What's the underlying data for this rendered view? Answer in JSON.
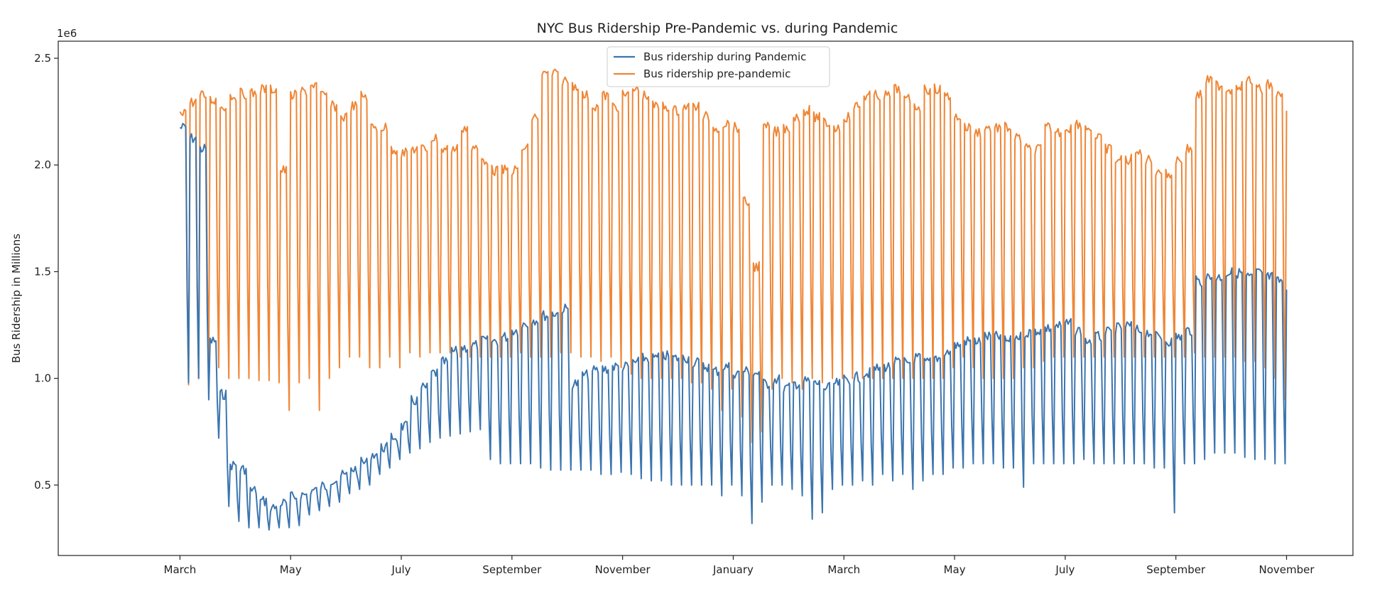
{
  "chart_data": {
    "type": "line",
    "title": "NYC Bus Ridership Pre-Pandemic vs. during Pandemic",
    "xlabel": "",
    "ylabel": "Bus Ridership in Millions",
    "y_offset_label": "1e6",
    "ylim": [
      0.17,
      2.58
    ],
    "yticks": [
      0.5,
      1.0,
      1.5,
      2.0,
      2.5
    ],
    "ytick_labels": [
      "0.5",
      "1.0",
      "1.5",
      "2.0",
      "2.5"
    ],
    "xlim": [
      -2.2,
      21.2
    ],
    "xticks": [
      {
        "x": 0,
        "label": "March"
      },
      {
        "x": 2,
        "label": "May"
      },
      {
        "x": 4,
        "label": "July"
      },
      {
        "x": 6,
        "label": "September"
      },
      {
        "x": 8,
        "label": "November"
      },
      {
        "x": 10,
        "label": "January"
      },
      {
        "x": 12,
        "label": "March"
      },
      {
        "x": 14,
        "label": "May"
      },
      {
        "x": 16,
        "label": "July"
      },
      {
        "x": 18,
        "label": "September"
      },
      {
        "x": 20,
        "label": "November"
      }
    ],
    "legend": {
      "position": "top-center"
    },
    "grid": false,
    "series": [
      {
        "name": "Bus ridership during Pandemic",
        "color": "#3b75af",
        "weekly": [
          2.2,
          2.15,
          2.1,
          1.2,
          0.95,
          0.62,
          0.6,
          0.5,
          0.45,
          0.42,
          0.44,
          0.47,
          0.48,
          0.5,
          0.52,
          0.55,
          0.57,
          0.6,
          0.63,
          0.67,
          0.7,
          0.75,
          0.8,
          0.92,
          0.98,
          1.05,
          1.1,
          1.15,
          1.17,
          1.18,
          1.2,
          1.2,
          1.22,
          1.25,
          1.28,
          1.3,
          1.32,
          1.33,
          1.35,
          1.0,
          1.04,
          1.06,
          1.07,
          1.08,
          1.08,
          1.1,
          1.12,
          1.12,
          1.13,
          1.12,
          1.12,
          1.1,
          1.08,
          1.06,
          1.08,
          1.05,
          1.06,
          1.05,
          1.0,
          1.02,
          0.98,
          1.0,
          1.01,
          1.0,
          0.98,
          1.0,
          1.02,
          1.03,
          1.05,
          1.07,
          1.08,
          1.1,
          1.1,
          1.12,
          1.1,
          1.12,
          1.15,
          1.18,
          1.2,
          1.2,
          1.22,
          1.22,
          1.2,
          1.22,
          1.24,
          1.25,
          1.26,
          1.27,
          1.28,
          1.25,
          1.2,
          1.22,
          1.24,
          1.26,
          1.27,
          1.25,
          1.24,
          1.22,
          1.2,
          1.22,
          1.25,
          1.48,
          1.5,
          1.5,
          1.52,
          1.52,
          1.5,
          1.52,
          1.5,
          1.48,
          1.42
        ],
        "weekly_lows": [
          0.98,
          1.0,
          0.9,
          0.72,
          0.4,
          0.33,
          0.3,
          0.3,
          0.29,
          0.3,
          0.3,
          0.31,
          0.36,
          0.38,
          0.4,
          0.42,
          0.46,
          0.48,
          0.5,
          0.55,
          0.58,
          0.62,
          0.65,
          0.67,
          0.7,
          0.72,
          0.73,
          0.74,
          0.75,
          0.76,
          0.62,
          0.6,
          0.6,
          0.6,
          0.6,
          0.58,
          0.57,
          0.57,
          0.57,
          0.57,
          0.57,
          0.55,
          0.55,
          0.56,
          0.55,
          0.53,
          0.52,
          0.52,
          0.5,
          0.5,
          0.5,
          0.5,
          0.5,
          0.45,
          0.5,
          0.45,
          0.32,
          0.42,
          0.5,
          0.5,
          0.48,
          0.45,
          0.34,
          0.37,
          0.48,
          0.5,
          0.5,
          0.52,
          0.5,
          0.55,
          0.52,
          0.55,
          0.48,
          0.52,
          0.55,
          0.55,
          0.58,
          0.58,
          0.6,
          0.6,
          0.6,
          0.58,
          0.58,
          0.49,
          0.6,
          0.6,
          0.6,
          0.6,
          0.6,
          0.62,
          0.6,
          0.6,
          0.6,
          0.6,
          0.6,
          0.6,
          0.58,
          0.58,
          0.37,
          0.6,
          0.6,
          0.62,
          0.65,
          0.65,
          0.65,
          0.63,
          0.62,
          0.62,
          0.6,
          0.6,
          0.65
        ]
      },
      {
        "name": "Bus ridership pre-pandemic",
        "color": "#ef8636",
        "weekly": [
          2.28,
          2.32,
          2.35,
          2.33,
          2.3,
          2.35,
          2.36,
          2.36,
          2.38,
          2.38,
          2.0,
          2.35,
          2.37,
          2.4,
          2.35,
          2.3,
          2.25,
          2.3,
          2.35,
          2.2,
          2.2,
          2.1,
          2.08,
          2.1,
          2.1,
          2.15,
          2.1,
          2.1,
          2.2,
          2.1,
          2.05,
          2.0,
          2.0,
          2.0,
          2.1,
          2.25,
          2.45,
          2.45,
          2.42,
          2.4,
          2.35,
          2.3,
          2.35,
          2.3,
          2.35,
          2.38,
          2.35,
          2.3,
          2.3,
          2.28,
          2.3,
          2.3,
          2.25,
          2.2,
          2.22,
          2.2,
          1.85,
          1.55,
          2.2,
          2.18,
          2.2,
          2.25,
          2.28,
          2.25,
          2.22,
          2.2,
          2.25,
          2.3,
          2.35,
          2.35,
          2.35,
          2.38,
          2.33,
          2.3,
          2.38,
          2.38,
          2.35,
          2.25,
          2.2,
          2.18,
          2.2,
          2.2,
          2.2,
          2.15,
          2.1,
          2.1,
          2.2,
          2.18,
          2.2,
          2.22,
          2.2,
          2.15,
          2.1,
          2.05,
          2.05,
          2.08,
          2.05,
          2.0,
          1.98,
          2.05,
          2.1,
          2.35,
          2.42,
          2.4,
          2.38,
          2.4,
          2.42,
          2.38,
          2.4,
          2.35,
          2.3
        ],
        "weekly_lows": [
          0.97,
          1.0,
          1.05,
          1.05,
          1.0,
          1.0,
          1.0,
          0.99,
          0.99,
          0.98,
          0.85,
          0.98,
          1.0,
          0.85,
          1.0,
          1.05,
          1.1,
          1.1,
          1.05,
          1.05,
          1.1,
          1.05,
          1.12,
          1.1,
          1.12,
          1.12,
          1.12,
          1.1,
          1.1,
          1.1,
          1.1,
          1.1,
          1.1,
          1.12,
          1.1,
          1.1,
          1.1,
          1.12,
          1.12,
          1.1,
          1.1,
          1.08,
          1.1,
          1.05,
          1.02,
          1.0,
          1.0,
          1.0,
          1.0,
          1.0,
          0.98,
          0.98,
          0.95,
          0.85,
          0.95,
          0.82,
          0.7,
          0.75,
          0.95,
          1.0,
          0.98,
          0.95,
          1.0,
          0.98,
          1.0,
          1.0,
          1.0,
          1.0,
          1.0,
          1.0,
          1.0,
          1.0,
          1.0,
          1.0,
          1.0,
          1.0,
          1.05,
          1.1,
          1.05,
          1.0,
          1.0,
          1.0,
          1.0,
          1.05,
          1.05,
          1.08,
          1.1,
          1.1,
          1.1,
          1.1,
          1.1,
          1.1,
          1.1,
          1.1,
          1.1,
          1.1,
          1.1,
          1.1,
          1.1,
          1.1,
          1.12,
          1.1,
          1.1,
          1.1,
          1.1,
          1.08,
          1.08,
          1.05,
          1.0,
          0.9,
          0.98
        ]
      }
    ]
  }
}
